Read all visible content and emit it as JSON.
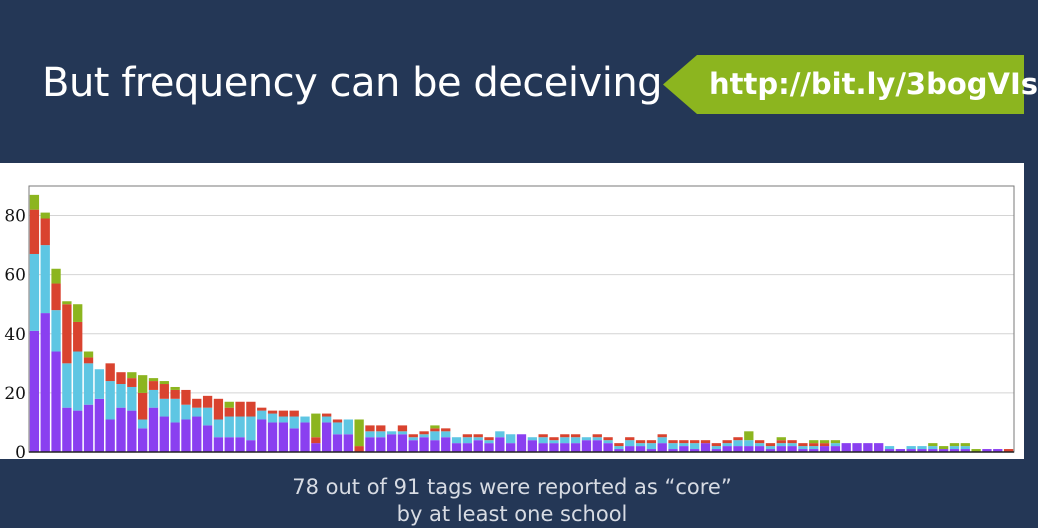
{
  "slide": {
    "title": "But frequency can be deceiving",
    "link": "http://bit.ly/3bogVIs",
    "caption_line1": "78 out of 91 tags were reported as “core”",
    "caption_line2": "by at least one school"
  },
  "colors": {
    "header_bg": "#243756",
    "banner": "#8cb51f",
    "purple": "#8a3ff0",
    "cyan": "#5ec6e3",
    "red": "#d9432f",
    "green": "#8cb51f"
  },
  "chart_data": {
    "type": "bar",
    "stacked": true,
    "ylim": [
      0,
      90
    ],
    "yticks": [
      0,
      20,
      40,
      60,
      80
    ],
    "grid": true,
    "legend": "none",
    "series": [
      {
        "color": "purple",
        "values": [
          41,
          47,
          34,
          15,
          14,
          16,
          18,
          11,
          15,
          14,
          8,
          15,
          12,
          10,
          11,
          12,
          9,
          5,
          5,
          5,
          4,
          11,
          10,
          10,
          8,
          10,
          3,
          10,
          6,
          6,
          0,
          5,
          5,
          6,
          6,
          4,
          5,
          4,
          5,
          3,
          3,
          4,
          3,
          5,
          3,
          6,
          4,
          3,
          3,
          3,
          3,
          4,
          4,
          3,
          1,
          2,
          2,
          1,
          3,
          1,
          2,
          1,
          3,
          1,
          2,
          2,
          2,
          2,
          1,
          2,
          2,
          1,
          1,
          2,
          2,
          3,
          3,
          3,
          3,
          1,
          1,
          1,
          1,
          1,
          1,
          1,
          1,
          0,
          1,
          1,
          0
        ]
      },
      {
        "color": "cyan",
        "values": [
          26,
          23,
          14,
          15,
          20,
          14,
          10,
          13,
          8,
          8,
          3,
          6,
          6,
          8,
          5,
          3,
          6,
          6,
          7,
          7,
          8,
          3,
          3,
          2,
          4,
          2,
          0,
          2,
          4,
          5,
          0,
          2,
          2,
          1,
          1,
          1,
          1,
          3,
          2,
          2,
          2,
          1,
          1,
          2,
          3,
          0,
          1,
          2,
          1,
          2,
          2,
          1,
          1,
          1,
          1,
          2,
          1,
          2,
          2,
          2,
          1,
          2,
          0,
          1,
          1,
          2,
          2,
          1,
          1,
          1,
          1,
          1,
          1,
          0,
          1,
          0,
          0,
          0,
          0,
          1,
          0,
          1,
          1,
          1,
          0,
          1,
          1,
          0,
          0,
          0,
          0
        ]
      },
      {
        "color": "red",
        "values": [
          15,
          9,
          9,
          20,
          10,
          2,
          0,
          6,
          4,
          3,
          9,
          3,
          5,
          3,
          5,
          3,
          4,
          7,
          3,
          5,
          5,
          1,
          1,
          2,
          2,
          0,
          2,
          1,
          1,
          0,
          2,
          2,
          2,
          0,
          2,
          1,
          1,
          1,
          1,
          0,
          1,
          1,
          1,
          0,
          0,
          0,
          0,
          1,
          1,
          1,
          1,
          0,
          1,
          1,
          1,
          1,
          1,
          1,
          1,
          1,
          1,
          1,
          1,
          1,
          1,
          1,
          0,
          1,
          1,
          1,
          1,
          1,
          1,
          1,
          0,
          0,
          0,
          0,
          0,
          0,
          0,
          0,
          0,
          0,
          0,
          0,
          0,
          0,
          0,
          0,
          1
        ]
      },
      {
        "color": "green",
        "values": [
          5,
          2,
          5,
          1,
          6,
          2,
          0,
          0,
          0,
          2,
          6,
          1,
          1,
          1,
          0,
          0,
          0,
          0,
          2,
          0,
          0,
          0,
          0,
          0,
          0,
          0,
          8,
          0,
          0,
          0,
          9,
          0,
          0,
          0,
          0,
          0,
          0,
          1,
          0,
          0,
          0,
          0,
          0,
          0,
          0,
          0,
          0,
          0,
          0,
          0,
          0,
          0,
          0,
          0,
          0,
          0,
          0,
          0,
          0,
          0,
          0,
          0,
          0,
          0,
          0,
          0,
          3,
          0,
          0,
          1,
          0,
          0,
          1,
          1,
          1,
          0,
          0,
          0,
          0,
          0,
          0,
          0,
          0,
          1,
          1,
          1,
          1,
          1,
          0,
          0,
          0
        ]
      }
    ]
  }
}
